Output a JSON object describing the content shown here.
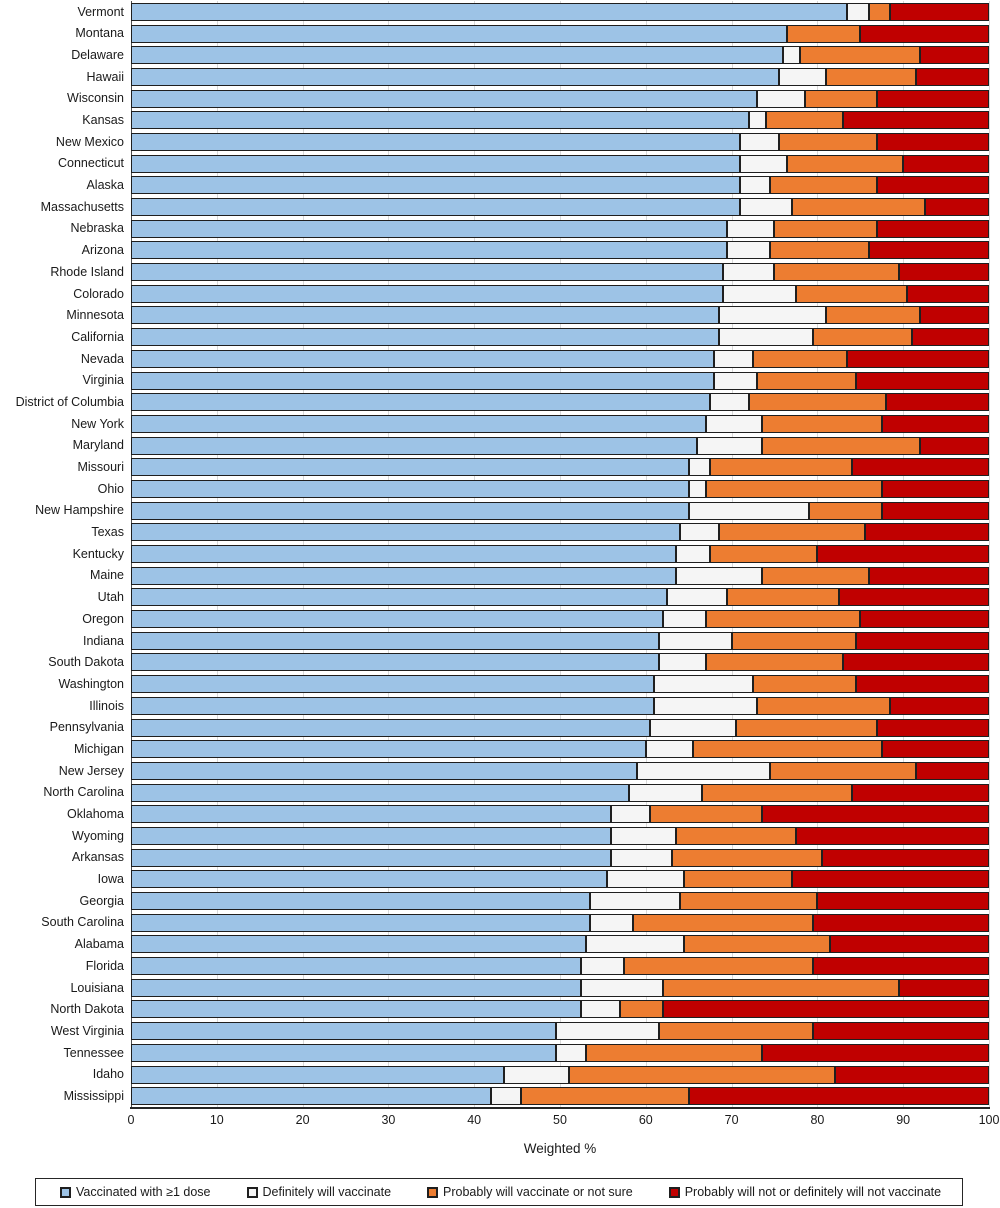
{
  "chart_data": {
    "type": "bar",
    "orientation": "horizontal",
    "stacked": true,
    "title": "",
    "xlabel": "Weighted %",
    "xlim": [
      0,
      100
    ],
    "x_ticks": [
      0,
      10,
      20,
      30,
      40,
      50,
      60,
      70,
      80,
      90,
      100
    ],
    "grid": true,
    "legend_position": "bottom",
    "bar_border_color": "#1F1F1F",
    "axis_color": "#262626",
    "gridline_color": "#D9D9D9",
    "series_keys": [
      "vaccinated-1dose",
      "definitely-will",
      "probably-or-unsure",
      "will-not"
    ],
    "categories": [
      "Vermont",
      "Montana",
      "Delaware",
      "Hawaii",
      "Wisconsin",
      "Kansas",
      "New Mexico",
      "Connecticut",
      "Alaska",
      "Massachusetts",
      "Nebraska",
      "Arizona",
      "Rhode Island",
      "Colorado",
      "Minnesota",
      "California",
      "Nevada",
      "Virginia",
      "District of Columbia",
      "New York",
      "Maryland",
      "Missouri",
      "Ohio",
      "New Hampshire",
      "Texas",
      "Kentucky",
      "Maine",
      "Utah",
      "Oregon",
      "Indiana",
      "South Dakota",
      "Washington",
      "Illinois",
      "Pennsylvania",
      "Michigan",
      "New Jersey",
      "North Carolina",
      "Oklahoma",
      "Wyoming",
      "Arkansas",
      "Iowa",
      "Georgia",
      "South Carolina",
      "Alabama",
      "Florida",
      "Louisiana",
      "North Dakota",
      "West Virginia",
      "Tennessee",
      "Idaho",
      "Mississippi"
    ],
    "series": [
      {
        "name": "Vaccinated with ≥1 dose",
        "color": "#9DC3E6",
        "values": [
          83.5,
          76.5,
          76,
          75.5,
          73,
          72,
          71,
          71,
          71,
          71,
          69.5,
          69.5,
          69,
          69,
          68.5,
          68.5,
          68,
          68,
          67.5,
          67,
          66,
          65,
          65,
          65,
          64,
          63.5,
          63.5,
          62.5,
          62,
          61.5,
          61.5,
          61,
          61,
          60.5,
          60,
          59,
          58,
          56,
          56,
          56,
          55.5,
          53.5,
          53.5,
          53,
          52.5,
          52.5,
          52.5,
          49.5,
          49.5,
          43.5,
          42
        ]
      },
      {
        "name": "Definitely will vaccinate",
        "color": "#F5F5F5",
        "values": [
          2.5,
          0,
          2,
          5.5,
          5.5,
          2,
          4.5,
          5.5,
          3.5,
          6,
          5.5,
          5,
          6,
          8.5,
          12.5,
          11,
          4.5,
          5,
          4.5,
          6.5,
          7.5,
          2.5,
          2,
          14,
          4.5,
          4,
          10,
          7,
          5,
          8.5,
          5.5,
          11.5,
          12,
          10,
          5.5,
          15.5,
          8.5,
          4.5,
          7.5,
          7,
          9,
          10.5,
          5,
          11.5,
          5,
          9.5,
          4.5,
          12,
          3.5,
          7.5,
          3.5
        ]
      },
      {
        "name": "Probably will vaccinate or not sure",
        "color": "#ED7D31",
        "values": [
          2.5,
          8.5,
          14,
          10.5,
          8.5,
          9,
          11.5,
          13.5,
          12.5,
          15.5,
          12,
          11.5,
          14.5,
          13,
          11,
          11.5,
          11,
          11.5,
          16,
          14,
          18.5,
          16.5,
          20.5,
          8.5,
          17,
          12.5,
          12.5,
          13,
          18,
          14.5,
          16,
          12,
          15.5,
          16.5,
          22,
          17,
          17.5,
          13,
          14,
          17.5,
          12.5,
          16,
          21,
          17,
          22,
          27.5,
          5,
          18,
          20.5,
          31,
          19.5
        ]
      },
      {
        "name": "Probably will not or definitely will not vaccinate",
        "color": "#C00000",
        "values": [
          11.5,
          15,
          8,
          8.5,
          13,
          17,
          13,
          10,
          13,
          7.5,
          13,
          14,
          10.5,
          9.5,
          8,
          9,
          16.5,
          15.5,
          12,
          12.5,
          8,
          16,
          12.5,
          12.5,
          14.5,
          20,
          14,
          17.5,
          15,
          15.5,
          17,
          15.5,
          11.5,
          13,
          12.5,
          8.5,
          16,
          26.5,
          22.5,
          19.5,
          23,
          20,
          20.5,
          18.5,
          20.5,
          10.5,
          38,
          20.5,
          26.5,
          18,
          35
        ]
      }
    ]
  }
}
